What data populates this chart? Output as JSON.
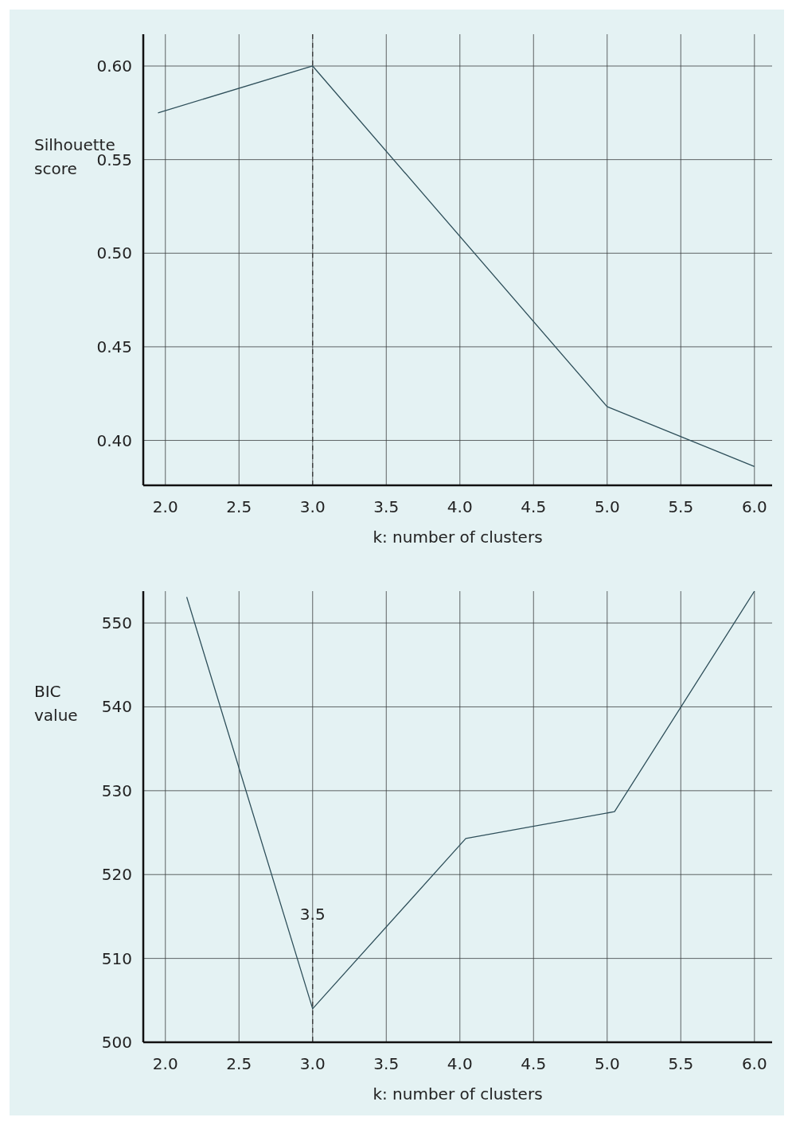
{
  "chart_data": [
    {
      "type": "line",
      "xlabel": "k: number of clusters",
      "ylabel": "Silhouette score",
      "x": [
        1.95,
        3.0,
        5.0,
        6.0
      ],
      "series": [
        {
          "color": "#2e4f5a",
          "values": [
            0.575,
            0.6,
            0.418,
            0.386
          ]
        }
      ],
      "xlim": [
        1.85,
        6.12
      ],
      "xticks": [
        {
          "value": 2,
          "label": "2.0"
        },
        {
          "value": 2.5,
          "label": "2.5"
        },
        {
          "value": 3,
          "label": "3.0"
        },
        {
          "value": 3.5,
          "label": "3.5"
        },
        {
          "value": 4,
          "label": "4.0"
        },
        {
          "value": 4.5,
          "label": "4.5"
        },
        {
          "value": 5,
          "label": "5.0"
        },
        {
          "value": 5.5,
          "label": "5.5"
        },
        {
          "value": 6,
          "label": "6.0"
        }
      ],
      "ylim": [
        0.376,
        0.617
      ],
      "yticks": [
        {
          "value": 0.4,
          "label": "0.40"
        },
        0.45,
        {
          "value": 0.5,
          "label": "0.50"
        },
        0.55,
        {
          "value": 0.6,
          "label": "0.60"
        }
      ],
      "grid": true,
      "marker": "none",
      "line_style": "solid",
      "ref_lines": [
        {
          "axis": "x",
          "value": 3,
          "line_style": "dashed",
          "color": "#333333"
        }
      ]
    },
    {
      "type": "line",
      "xlabel": "k: number of clusters",
      "ylabel": "BIC value",
      "x": [
        2.145,
        3.0,
        4.04,
        5.05,
        6.0
      ],
      "series": [
        {
          "color": "#2e4f5a",
          "values": [
            553.1,
            504.0,
            524.3,
            527.5,
            553.8
          ]
        }
      ],
      "xlim": [
        1.85,
        6.12
      ],
      "xticks": [
        {
          "value": 2,
          "label": "2.0"
        },
        {
          "value": 2.5,
          "label": "2.5"
        },
        {
          "value": 3,
          "label": "3.0"
        },
        {
          "value": 3.5,
          "label": "3.5"
        },
        {
          "value": 4,
          "label": "4.0"
        },
        {
          "value": 4.5,
          "label": "4.5"
        },
        {
          "value": 5,
          "label": "5.0"
        },
        {
          "value": 5.5,
          "label": "5.5"
        },
        {
          "value": 6,
          "label": "6.0"
        }
      ],
      "ylim": [
        500,
        553.8
      ],
      "yticks": [
        500,
        510,
        520,
        530,
        540,
        550
      ],
      "grid": true,
      "marker": "none",
      "line_style": "solid",
      "ref_lines": [
        {
          "axis": "x",
          "value": 3,
          "line_style": "dashed",
          "color": "#333333"
        }
      ],
      "annotations": [
        "3.5"
      ]
    }
  ]
}
